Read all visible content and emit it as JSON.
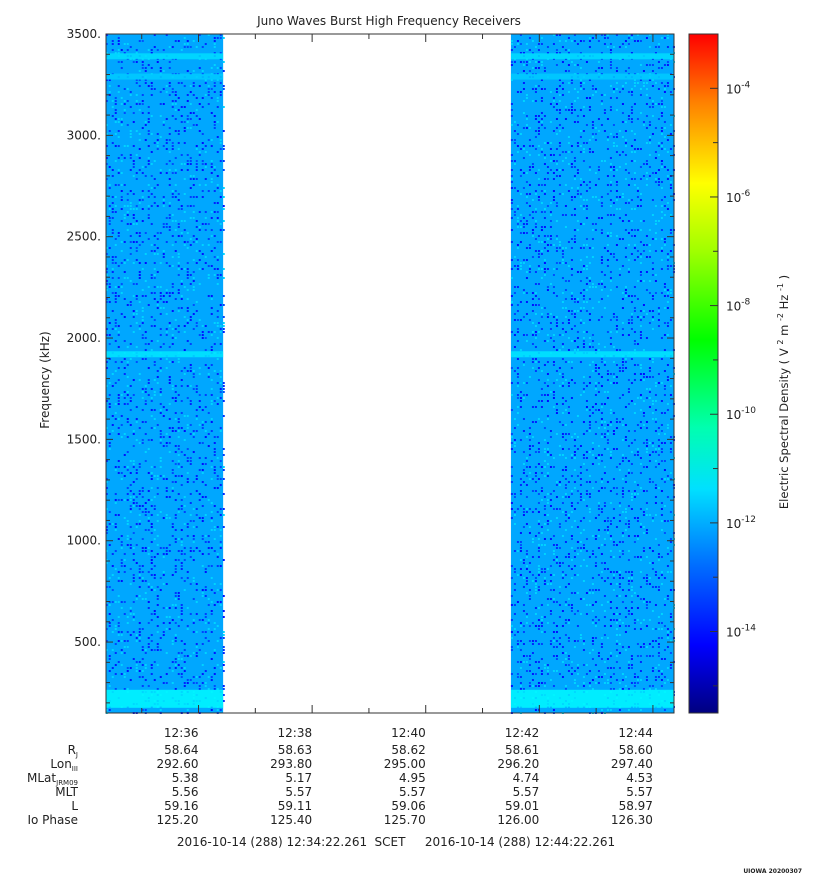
{
  "chart_data": {
    "type": "heatmap",
    "title": "Juno Waves Burst High Frequency Receivers",
    "ylabel": "Frequency (kHz)",
    "ylim": [
      150,
      3500
    ],
    "y_ticks": [
      "500.",
      "1000.",
      "1500.",
      "2000.",
      "2500.",
      "3000.",
      "3500."
    ],
    "y_tick_values": [
      500,
      1000,
      1500,
      2000,
      2500,
      3000,
      3500
    ],
    "x_ticks": [
      "12:36",
      "12:38",
      "12:40",
      "12:42",
      "12:44"
    ],
    "x_range": [
      "12:34:22.261",
      "12:44:22.261"
    ],
    "data_segments": [
      {
        "start": "12:34:22",
        "end": "12:36:26",
        "background_log10": -12.3,
        "emission_lines": [
          {
            "freq": 3390,
            "log10": -11.7
          },
          {
            "freq": 3290,
            "log10": -11.9
          },
          {
            "freq": 1920,
            "log10": -11.6
          },
          {
            "freq": 220,
            "log10": -11.4
          }
        ]
      },
      {
        "start": "12:41:30",
        "end": "12:44:22",
        "background_log10": -12.3,
        "emission_lines": [
          {
            "freq": 3390,
            "log10": -11.7
          },
          {
            "freq": 3290,
            "log10": -11.9
          },
          {
            "freq": 1920,
            "log10": -11.6
          },
          {
            "freq": 220,
            "log10": -11.4
          }
        ]
      }
    ],
    "gap": {
      "start": "12:36:26",
      "end": "12:41:30"
    },
    "colorbar": {
      "label": "Electric Spectral Density",
      "unit_base": "V",
      "unit_mid": "m",
      "unit_end": "Hz",
      "scale": "log",
      "range_log10": [
        -15.5,
        -3
      ],
      "tick_exponents": [
        "-4",
        "-6",
        "-8",
        "-10",
        "-12",
        "-14"
      ],
      "tick_values_log10": [
        -4,
        -6,
        -8,
        -10,
        -12,
        -14
      ],
      "colormap": [
        "#000080",
        "#0000ff",
        "#0080ff",
        "#00ffff",
        "#00ff80",
        "#00ff00",
        "#80ff00",
        "#ffff00",
        "#ff8000",
        "#ff0000"
      ]
    },
    "ephemeris": {
      "rows": [
        {
          "label": "R",
          "sub": "J",
          "values": [
            "58.64",
            "58.63",
            "58.62",
            "58.61",
            "58.60"
          ]
        },
        {
          "label": "Lon",
          "sub": "III",
          "values": [
            "292.60",
            "293.80",
            "295.00",
            "296.20",
            "297.40"
          ]
        },
        {
          "label": "MLat",
          "sub": "JRM09",
          "values": [
            "5.38",
            "5.17",
            "4.95",
            "4.74",
            "4.53"
          ]
        },
        {
          "label": "MLT",
          "sub": "",
          "values": [
            "5.56",
            "5.57",
            "5.57",
            "5.57",
            "5.57"
          ]
        },
        {
          "label": "L",
          "sub": "",
          "values": [
            "59.16",
            "59.11",
            "59.06",
            "59.01",
            "58.97"
          ]
        },
        {
          "label": "Io Phase",
          "sub": "",
          "values": [
            "125.20",
            "125.40",
            "125.70",
            "126.00",
            "126.30"
          ]
        }
      ]
    },
    "time_span": {
      "start": "2016-10-14 (288) 12:34:22.261",
      "label": "SCET",
      "end": "2016-10-14 (288) 12:44:22.261"
    },
    "footer_stamp": "UIOWA 20200307"
  }
}
